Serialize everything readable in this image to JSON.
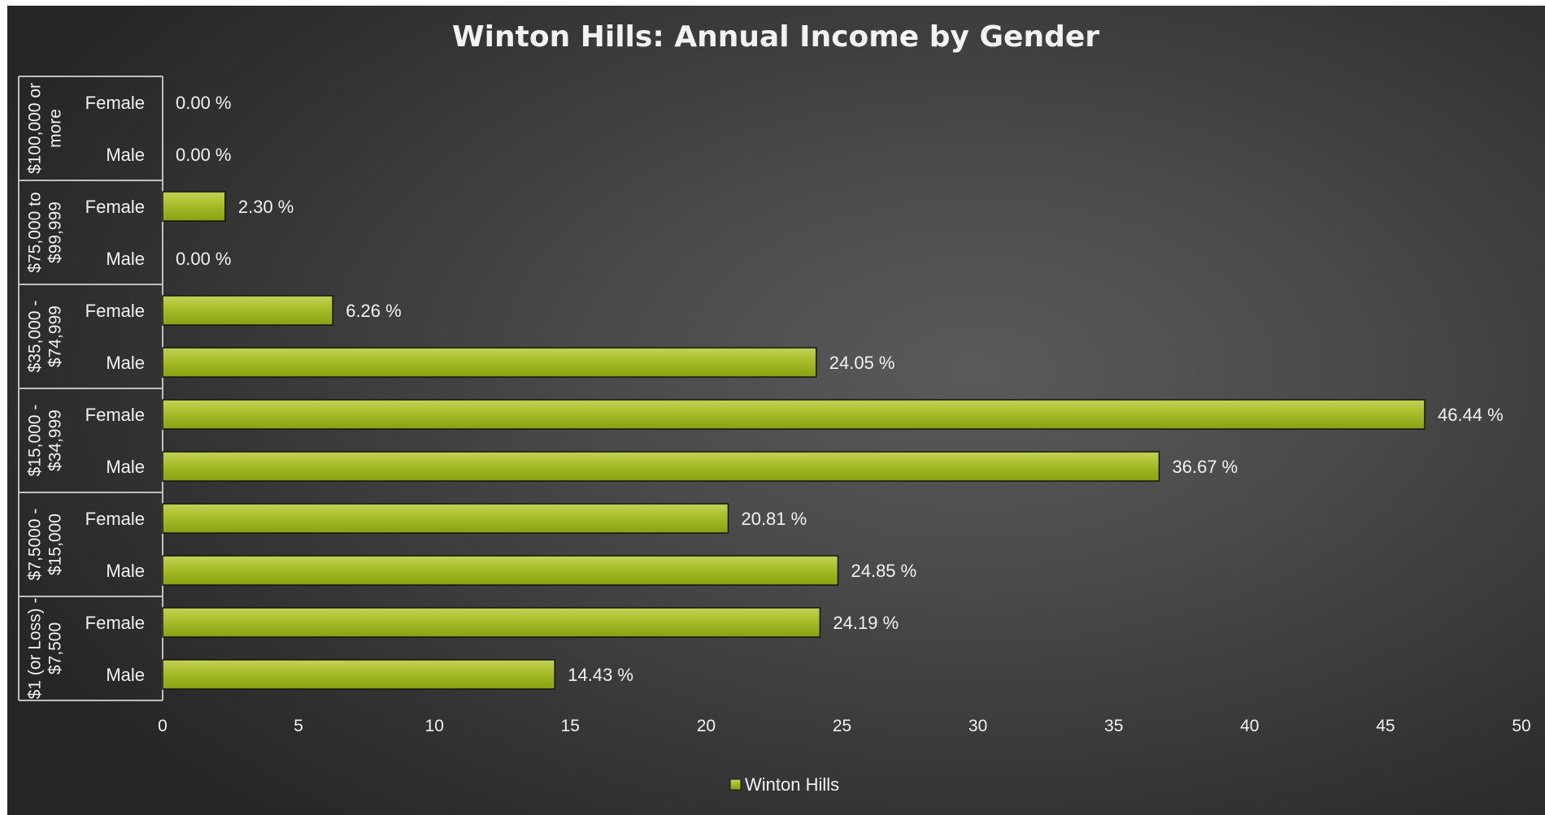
{
  "chart_data": {
    "type": "bar",
    "orientation": "horizontal",
    "title": "Winton Hills: Annual Income by Gender",
    "groups": [
      {
        "label": "$100,000 or more",
        "lines": [
          "$100,000 or",
          "more"
        ]
      },
      {
        "label": "$75,000 to $99,999",
        "lines": [
          "$75,000 to",
          "$99,999"
        ]
      },
      {
        "label": "$35,000 - $74,999",
        "lines": [
          "$35,000 -",
          "$74,999"
        ]
      },
      {
        "label": "$15,000 - $34,999",
        "lines": [
          "$15,000 -",
          "$34,999"
        ]
      },
      {
        "label": "$7,5000 - $15,000",
        "lines": [
          "$7,5000 -",
          "$15,000"
        ]
      },
      {
        "label": "$1 (or Loss) - $7,500",
        "lines": [
          "$1 (or Loss) -",
          "$7,500"
        ]
      }
    ],
    "categories": [
      "Female",
      "Male",
      "Female",
      "Male",
      "Female",
      "Male",
      "Female",
      "Male",
      "Female",
      "Male",
      "Female",
      "Male"
    ],
    "series": [
      {
        "name": "Winton Hills",
        "values": [
          0.0,
          0.0,
          2.3,
          0.0,
          6.26,
          24.05,
          46.44,
          36.67,
          20.81,
          24.85,
          24.19,
          14.43
        ],
        "data_labels": [
          "0.00 %",
          "0.00 %",
          "2.30 %",
          "0.00 %",
          "6.26 %",
          "24.05 %",
          "46.44 %",
          "36.67 %",
          "20.81 %",
          "24.85 %",
          "24.19 %",
          "14.43 %"
        ]
      }
    ],
    "xlim": [
      0,
      50
    ],
    "xticks": [
      0,
      5,
      10,
      15,
      20,
      25,
      30,
      35,
      40,
      45,
      50
    ],
    "grid": false,
    "legend": "bottom",
    "colors": {
      "bar": "#a8bd28",
      "bar_edge": "#141414",
      "text": "#f2f2f2",
      "axis": "#bfbfbf"
    }
  }
}
